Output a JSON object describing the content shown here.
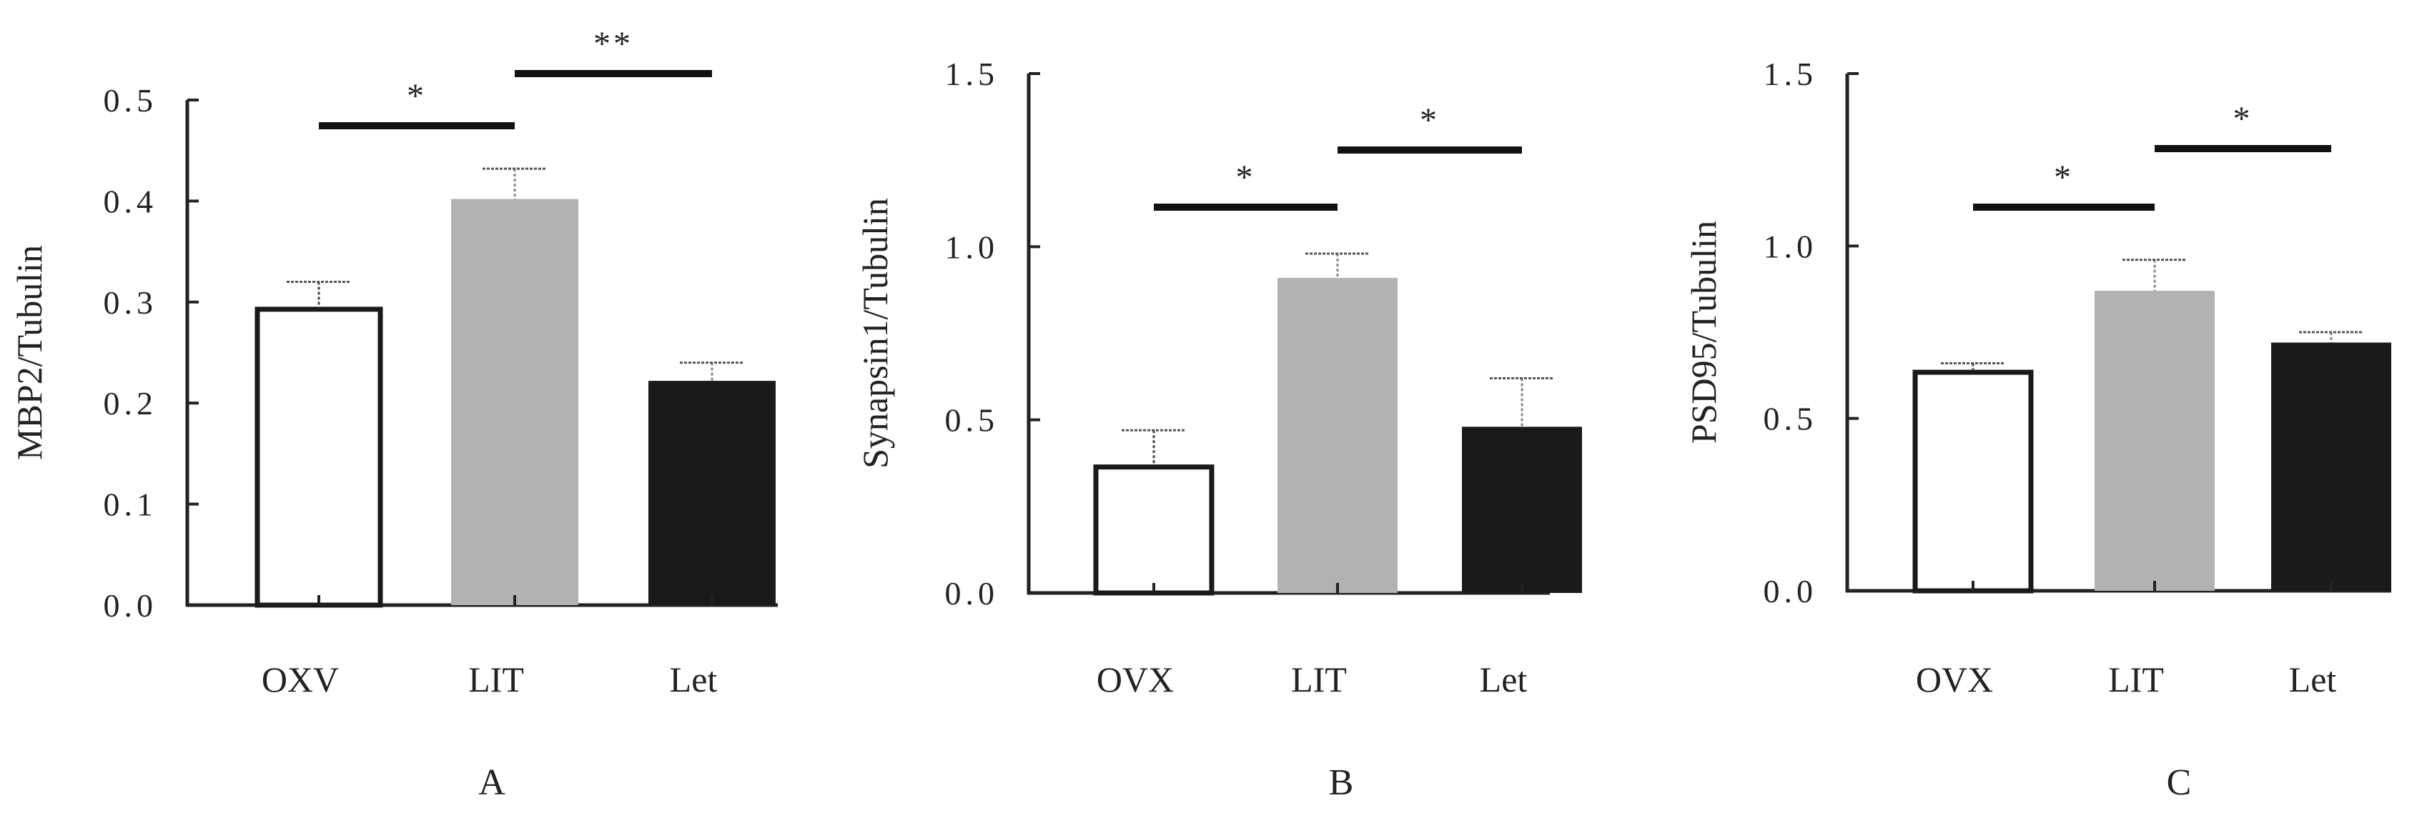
{
  "chart_data": [
    {
      "type": "bar",
      "panel_label": "A",
      "ylabel": "MBP2/Tubulin",
      "ylim": [
        0,
        0.5
      ],
      "yticks": [
        "0.0",
        "0.1",
        "0.2",
        "0.3",
        "0.4",
        "0.5"
      ],
      "categories": [
        "OXV",
        "LIT",
        "Let"
      ],
      "values": [
        0.295,
        0.402,
        0.222
      ],
      "errors": [
        0.025,
        0.03,
        0.018
      ],
      "colors": [
        "#ffffff",
        "#b2b2b2",
        "#1a1a1a"
      ],
      "significance": [
        {
          "from": 0,
          "to": 1,
          "label": "*"
        },
        {
          "from": 1,
          "to": 2,
          "label": "**"
        }
      ]
    },
    {
      "type": "bar",
      "panel_label": "B",
      "ylabel": "Synapsin1/Tubulin",
      "ylim": [
        0,
        1.5
      ],
      "yticks": [
        "0.0",
        "0.5",
        "1.0",
        "1.5"
      ],
      "categories": [
        "OVX",
        "LIT",
        "Let"
      ],
      "values": [
        0.37,
        0.91,
        0.48
      ],
      "errors": [
        0.1,
        0.07,
        0.14
      ],
      "colors": [
        "#ffffff",
        "#b2b2b2",
        "#1a1a1a"
      ],
      "significance": [
        {
          "from": 0,
          "to": 1,
          "label": "*"
        },
        {
          "from": 1,
          "to": 2,
          "label": "*"
        }
      ]
    },
    {
      "type": "bar",
      "panel_label": "C",
      "ylabel": "PSD95/Tubulin",
      "ylim": [
        0,
        1.5
      ],
      "yticks": [
        "0.0",
        "0.5",
        "1.0",
        "1.5"
      ],
      "categories": [
        "OVX",
        "LIT",
        "Let"
      ],
      "values": [
        0.64,
        0.87,
        0.72
      ],
      "errors": [
        0.02,
        0.09,
        0.03
      ],
      "colors": [
        "#ffffff",
        "#b2b2b2",
        "#1a1a1a"
      ],
      "significance": [
        {
          "from": 0,
          "to": 1,
          "label": "*"
        },
        {
          "from": 1,
          "to": 2,
          "label": "*"
        }
      ]
    }
  ]
}
